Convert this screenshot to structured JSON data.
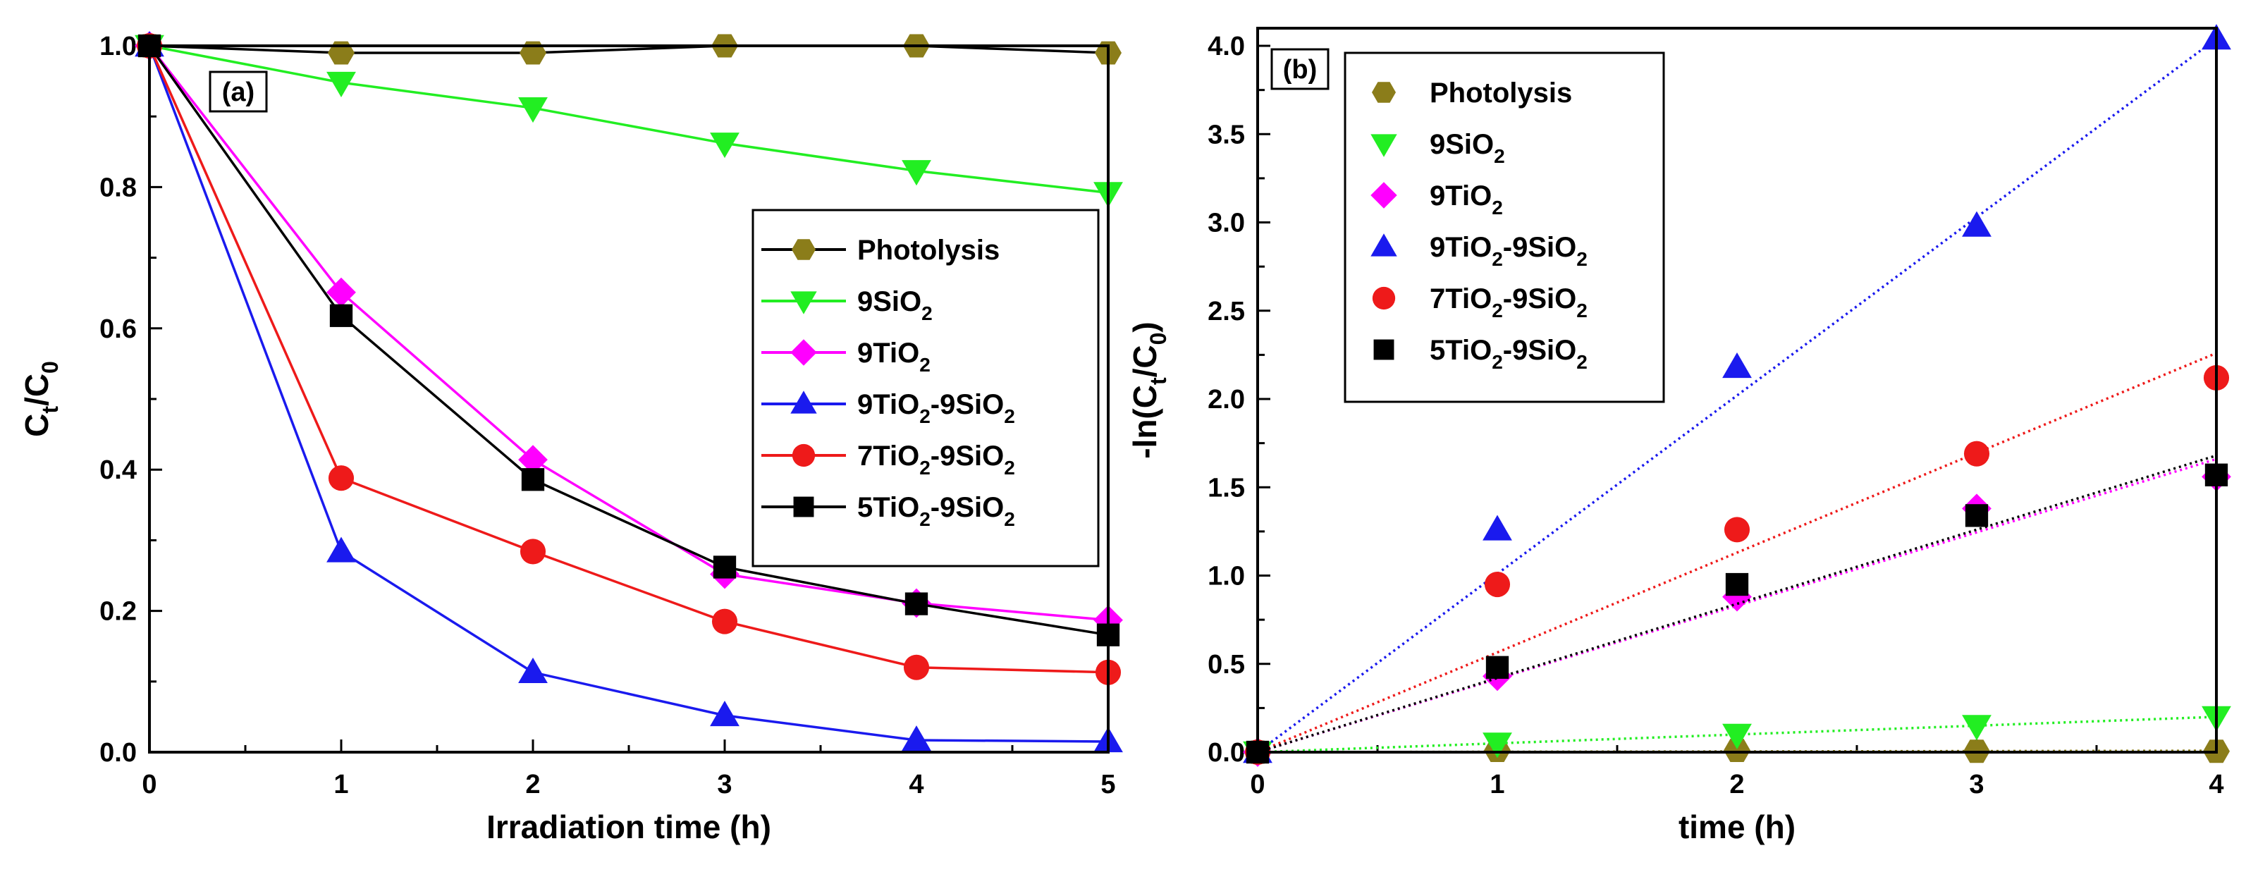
{
  "chart_data": [
    {
      "panel_label": "(a)",
      "type": "line",
      "xlabel": "Irradiation time (h)",
      "ylabel": {
        "base": "C",
        "sub1": "t",
        "mid": "/C",
        "sub2": "0"
      },
      "xlim": [
        0,
        5
      ],
      "ylim": [
        0,
        1.0
      ],
      "xticks": [
        "0",
        "1",
        "2",
        "3",
        "4",
        "5"
      ],
      "yticks": [
        "0.0",
        "0.2",
        "0.4",
        "0.6",
        "0.8",
        "1.0"
      ],
      "legend_position": "center-right",
      "x": [
        0,
        1,
        2,
        3,
        4,
        5
      ],
      "series": [
        {
          "name": "Photolysis",
          "legend": [
            [
              "Photolysis",
              ""
            ]
          ],
          "marker": "hexagon",
          "color": "#8b7d1a",
          "line_color": "#000000",
          "values": [
            1.0,
            0.99,
            0.99,
            1.0,
            1.0,
            0.99
          ]
        },
        {
          "name": "9SiO2",
          "legend": [
            [
              "9SiO",
              ""
            ],
            [
              "2",
              "sub"
            ]
          ],
          "marker": "triangle-down",
          "color": "#22ee22",
          "line_color": "#22ee22",
          "values": [
            1.0,
            0.948,
            0.912,
            0.862,
            0.823,
            0.792
          ]
        },
        {
          "name": "9TiO2",
          "legend": [
            [
              "9TiO",
              ""
            ],
            [
              "2",
              "sub"
            ]
          ],
          "marker": "diamond",
          "color": "#ff00ff",
          "line_color": "#ff00ff",
          "values": [
            1.0,
            0.651,
            0.414,
            0.252,
            0.211,
            0.187
          ]
        },
        {
          "name": "9TiO2-9SiO2",
          "legend": [
            [
              "9TiO",
              ""
            ],
            [
              "2",
              "sub"
            ],
            [
              "-9SiO",
              ""
            ],
            [
              "2",
              "sub"
            ]
          ],
          "marker": "triangle-up",
          "color": "#1a1aee",
          "line_color": "#1a1aee",
          "values": [
            1.0,
            0.284,
            0.113,
            0.052,
            0.017,
            0.015
          ]
        },
        {
          "name": "7TiO2-9SiO2",
          "legend": [
            [
              "7TiO",
              ""
            ],
            [
              "2",
              "sub"
            ],
            [
              "-9SiO",
              ""
            ],
            [
              "2",
              "sub"
            ]
          ],
          "marker": "circle",
          "color": "#ee1a1a",
          "line_color": "#ee1a1a",
          "values": [
            1.0,
            0.388,
            0.284,
            0.185,
            0.12,
            0.113
          ]
        },
        {
          "name": "5TiO2-9SiO2",
          "legend": [
            [
              "5TiO",
              ""
            ],
            [
              "2",
              "sub"
            ],
            [
              "-9SiO",
              ""
            ],
            [
              "2",
              "sub"
            ]
          ],
          "marker": "square",
          "color": "#000000",
          "line_color": "#000000",
          "values": [
            1.0,
            0.618,
            0.386,
            0.262,
            0.21,
            0.166
          ]
        }
      ]
    },
    {
      "panel_label": "(b)",
      "type": "scatter",
      "xlabel": "time (h)",
      "ylabel": {
        "base": "-ln(C",
        "sub1": "t",
        "mid": "/C",
        "sub2": "0",
        "end": ")"
      },
      "xlim": [
        0,
        4
      ],
      "ylim": [
        0,
        4.1
      ],
      "xticks": [
        "0",
        "1",
        "2",
        "3",
        "4"
      ],
      "yticks": [
        "0.0",
        "0.5",
        "1.0",
        "1.5",
        "2.0",
        "2.5",
        "3.0",
        "3.5",
        "4.0"
      ],
      "legend_position": "top-left",
      "x": [
        0,
        1,
        2,
        3,
        4
      ],
      "series": [
        {
          "name": "Photolysis",
          "legend": [
            [
              "Photolysis",
              ""
            ]
          ],
          "marker": "hexagon",
          "color": "#8b7d1a",
          "values": [
            0,
            0.01,
            0.01,
            0.005,
            0.005
          ],
          "fit": [
            0,
            0.002
          ]
        },
        {
          "name": "9SiO2",
          "legend": [
            [
              "9SiO",
              ""
            ],
            [
              "2",
              "sub"
            ]
          ],
          "marker": "triangle-down",
          "color": "#22ee22",
          "values": [
            0,
            0.05,
            0.1,
            0.15,
            0.2
          ],
          "fit": [
            0,
            0.05
          ]
        },
        {
          "name": "9TiO2",
          "legend": [
            [
              "9TiO",
              ""
            ],
            [
              "2",
              "sub"
            ]
          ],
          "marker": "diamond",
          "color": "#ff00ff",
          "values": [
            0,
            0.43,
            0.88,
            1.38,
            1.56
          ],
          "fit": [
            0,
            0.415
          ]
        },
        {
          "name": "9TiO2-9SiO2",
          "legend": [
            [
              "9TiO",
              ""
            ],
            [
              "2",
              "sub"
            ],
            [
              "-9SiO",
              ""
            ],
            [
              "2",
              "sub"
            ]
          ],
          "marker": "triangle-up",
          "color": "#1a1aee",
          "values": [
            0,
            1.26,
            2.18,
            2.98,
            4.04
          ],
          "fit": [
            0,
            1.01
          ]
        },
        {
          "name": "7TiO2-9SiO2",
          "legend": [
            [
              "7TiO",
              ""
            ],
            [
              "2",
              "sub"
            ],
            [
              "-9SiO",
              ""
            ],
            [
              "2",
              "sub"
            ]
          ],
          "marker": "circle",
          "color": "#ee1a1a",
          "values": [
            0,
            0.95,
            1.26,
            1.69,
            2.12
          ],
          "fit": [
            0,
            0.565
          ]
        },
        {
          "name": "5TiO2-9SiO2",
          "legend": [
            [
              "5TiO",
              ""
            ],
            [
              "2",
              "sub"
            ],
            [
              "-9SiO",
              ""
            ],
            [
              "2",
              "sub"
            ]
          ],
          "marker": "square",
          "color": "#000000",
          "values": [
            0,
            0.48,
            0.95,
            1.34,
            1.57
          ],
          "fit": [
            0,
            0.42
          ]
        }
      ]
    }
  ]
}
